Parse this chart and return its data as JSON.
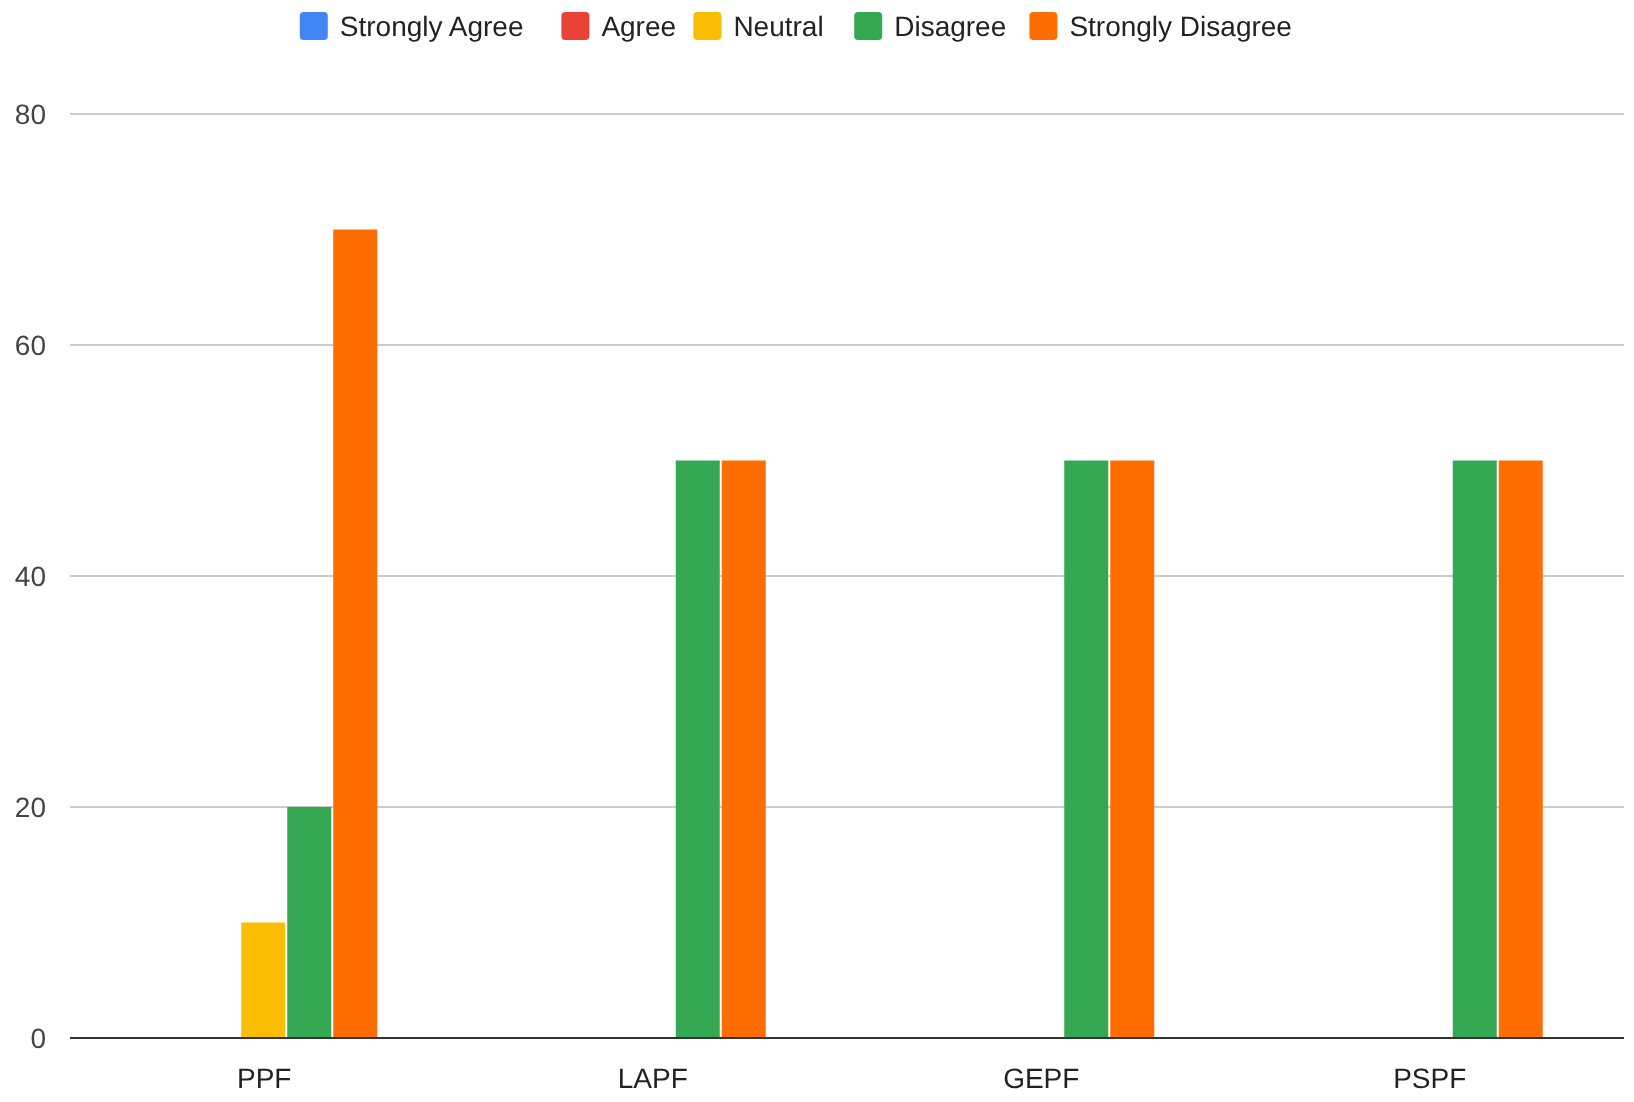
{
  "chart_data": {
    "type": "bar",
    "categories": [
      "PPF",
      "LAPF",
      "GEPF",
      "PSPF"
    ],
    "series": [
      {
        "name": "Strongly Agree",
        "color": "#4285f4",
        "values": [
          0,
          0,
          0,
          0
        ]
      },
      {
        "name": "Agree",
        "color": "#ea4335",
        "values": [
          0,
          0,
          0,
          0
        ]
      },
      {
        "name": "Neutral",
        "color": "#fbbc04",
        "values": [
          10,
          0,
          0,
          0
        ]
      },
      {
        "name": "Disagree",
        "color": "#34a853",
        "values": [
          20,
          50,
          50,
          50
        ]
      },
      {
        "name": "Strongly Disagree",
        "color": "#ff6d01",
        "values": [
          70,
          50,
          50,
          50
        ]
      }
    ],
    "ylim": [
      0,
      80
    ],
    "yticks": [
      0,
      20,
      40,
      60,
      80
    ],
    "grid": "y",
    "legend": "top"
  }
}
